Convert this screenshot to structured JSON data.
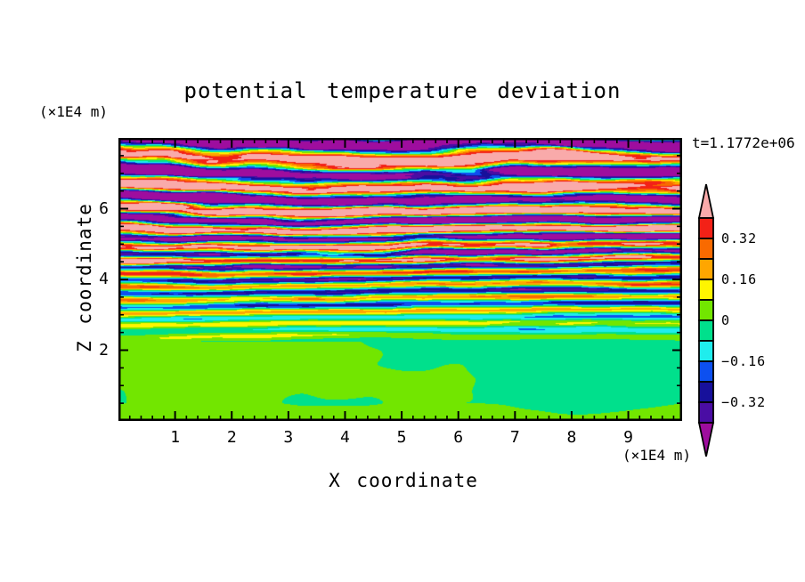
{
  "chart_data": {
    "type": "heatmap",
    "title": "potential temperature deviation",
    "xlabel": "X coordinate",
    "zlabel": "Z coordinate",
    "x_unit": "(×1E4 m)",
    "z_unit": "(×1E4 m)",
    "time_label": "t=1.1772e+06",
    "x_range": [
      0,
      9.95
    ],
    "z_range": [
      0,
      8
    ],
    "x_major_ticks": [
      "1",
      "2",
      "3",
      "4",
      "5",
      "6",
      "7",
      "8",
      "9"
    ],
    "x_minor_step": 0.2,
    "z_major_ticks": [
      "2",
      "4",
      "6"
    ],
    "z_minor_step": 0.5,
    "grid": false,
    "legend_position": "right-colorbar",
    "colorbar": {
      "vmax": 0.4,
      "level_step": 0.08,
      "segment_colors_low_to_high": [
        "#4A0DA4",
        "#17109B",
        "#0D50F0",
        "#1FEDED",
        "#00E08C",
        "#72E600",
        "#FFF500",
        "#FFA600",
        "#F96A00",
        "#F32117"
      ],
      "under_arrow_color": "#9E0D9E",
      "over_arrow_color": "#F9AAAA",
      "labels": [
        {
          "text": "0.32",
          "value": 0.32
        },
        {
          "text": "0.16",
          "value": 0.16
        },
        {
          "text": "0",
          "value": 0
        },
        {
          "text": "−0.16",
          "value": -0.16
        },
        {
          "text": "−0.32",
          "value": -0.32
        }
      ]
    },
    "field_description": "Stratified turbulent layers: saturated salmon (>0.40) and violet (<-0.40) wavy bands near top (z≈5.5-8), thin multicolor horizontal streaks mid-depth (z≈2.3-5.5), nearly uniform spring-green/chartreuse calm region below z≈2.2",
    "field_model": {
      "calm_top_z": 2.25,
      "band_phase": 5.4,
      "band_cycles_per_unit_mid": 2.7,
      "band_cycles_per_unit_top": 1.1,
      "max_amplitude": 0.58,
      "streak_weight_max": 0.4,
      "background_amplitude": 0.065,
      "bottom_strip_bias": 0.05,
      "seeds": {
        "s1": 0.0,
        "s2": 3.7,
        "s3": 7.7,
        "s4": 2.2,
        "s5": 3.3,
        "s6": 8.8,
        "s7": 4.4,
        "s8": 6.1
      }
    }
  }
}
